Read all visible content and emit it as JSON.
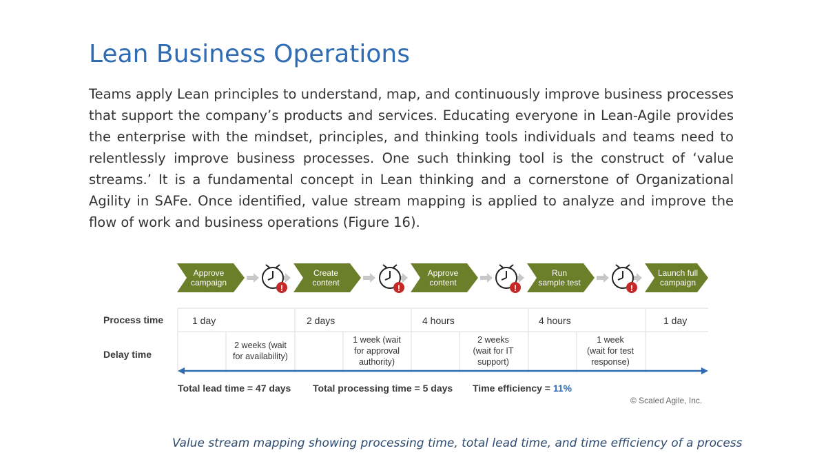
{
  "title": "Lean Business Operations",
  "paragraph": "Teams apply Lean principles to understand, map, and continuously improve business processes that support the company’s products and services. Educating everyone in Lean-Agile provides the enterprise with the mindset, principles, and thinking tools individuals and teams need to relentlessly improve business processes. One such thinking tool is the construct of ‘value streams.’ It is a fundamental concept in Lean thinking and a cornerstone of Organizational Agility in SAFe. Once identified, value stream mapping is applied to analyze and improve the flow of work and business operations (Figure 16).",
  "diagram": {
    "steps": [
      {
        "line1": "Approve",
        "line2": "campaign"
      },
      {
        "line1": "Create",
        "line2": "content"
      },
      {
        "line1": "Approve",
        "line2": "content"
      },
      {
        "line1": "Run",
        "line2": "sample test"
      },
      {
        "line1": "Launch full",
        "line2": "campaign"
      }
    ],
    "process_label": "Process time",
    "delay_label": "Delay time",
    "process_times": [
      "1 day",
      "2 days",
      "4 hours",
      "4 hours",
      "1 day"
    ],
    "delays": [
      {
        "l1": "2 weeks (wait",
        "l2": "for availability)",
        "l3": ""
      },
      {
        "l1": "1 week (wait",
        "l2": "for approval",
        "l3": "authority)"
      },
      {
        "l1": "2 weeks",
        "l2": "(wait for IT",
        "l3": "support)"
      },
      {
        "l1": "1 week",
        "l2": "(wait for test",
        "l3": "response)"
      }
    ],
    "total_lead": "Total lead time = 47 days",
    "total_processing": "Total processing time = 5 days",
    "efficiency_label": "Time efficiency = ",
    "efficiency_value": "11%",
    "copyright": "© Scaled Agile, Inc.",
    "colors": {
      "step": "#6b7f2b",
      "accent": "#2f6cb3",
      "alert": "#c62828"
    }
  },
  "caption": "Value stream mapping showing processing time, total lead time, and time efficiency of a process"
}
